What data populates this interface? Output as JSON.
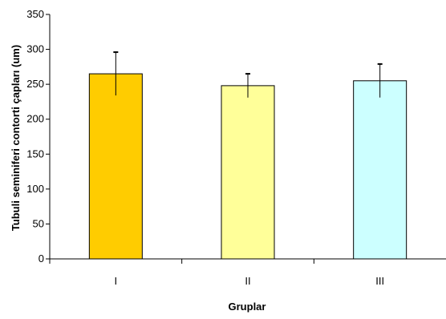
{
  "chart_data": {
    "type": "bar",
    "title": "",
    "xlabel": "Gruplar",
    "ylabel": "Tubuli seminiferi contorti çapları (um)",
    "categories": [
      "I",
      "II",
      "III"
    ],
    "values": [
      265,
      248,
      255
    ],
    "errors": [
      31,
      17,
      24
    ],
    "colors": [
      "#FFCC00",
      "#FFFF99",
      "#CCFFFF"
    ],
    "ylim": [
      0,
      350
    ],
    "yticks": [
      0,
      50,
      100,
      150,
      200,
      250,
      300,
      350
    ],
    "grid": false,
    "legend": "none"
  }
}
